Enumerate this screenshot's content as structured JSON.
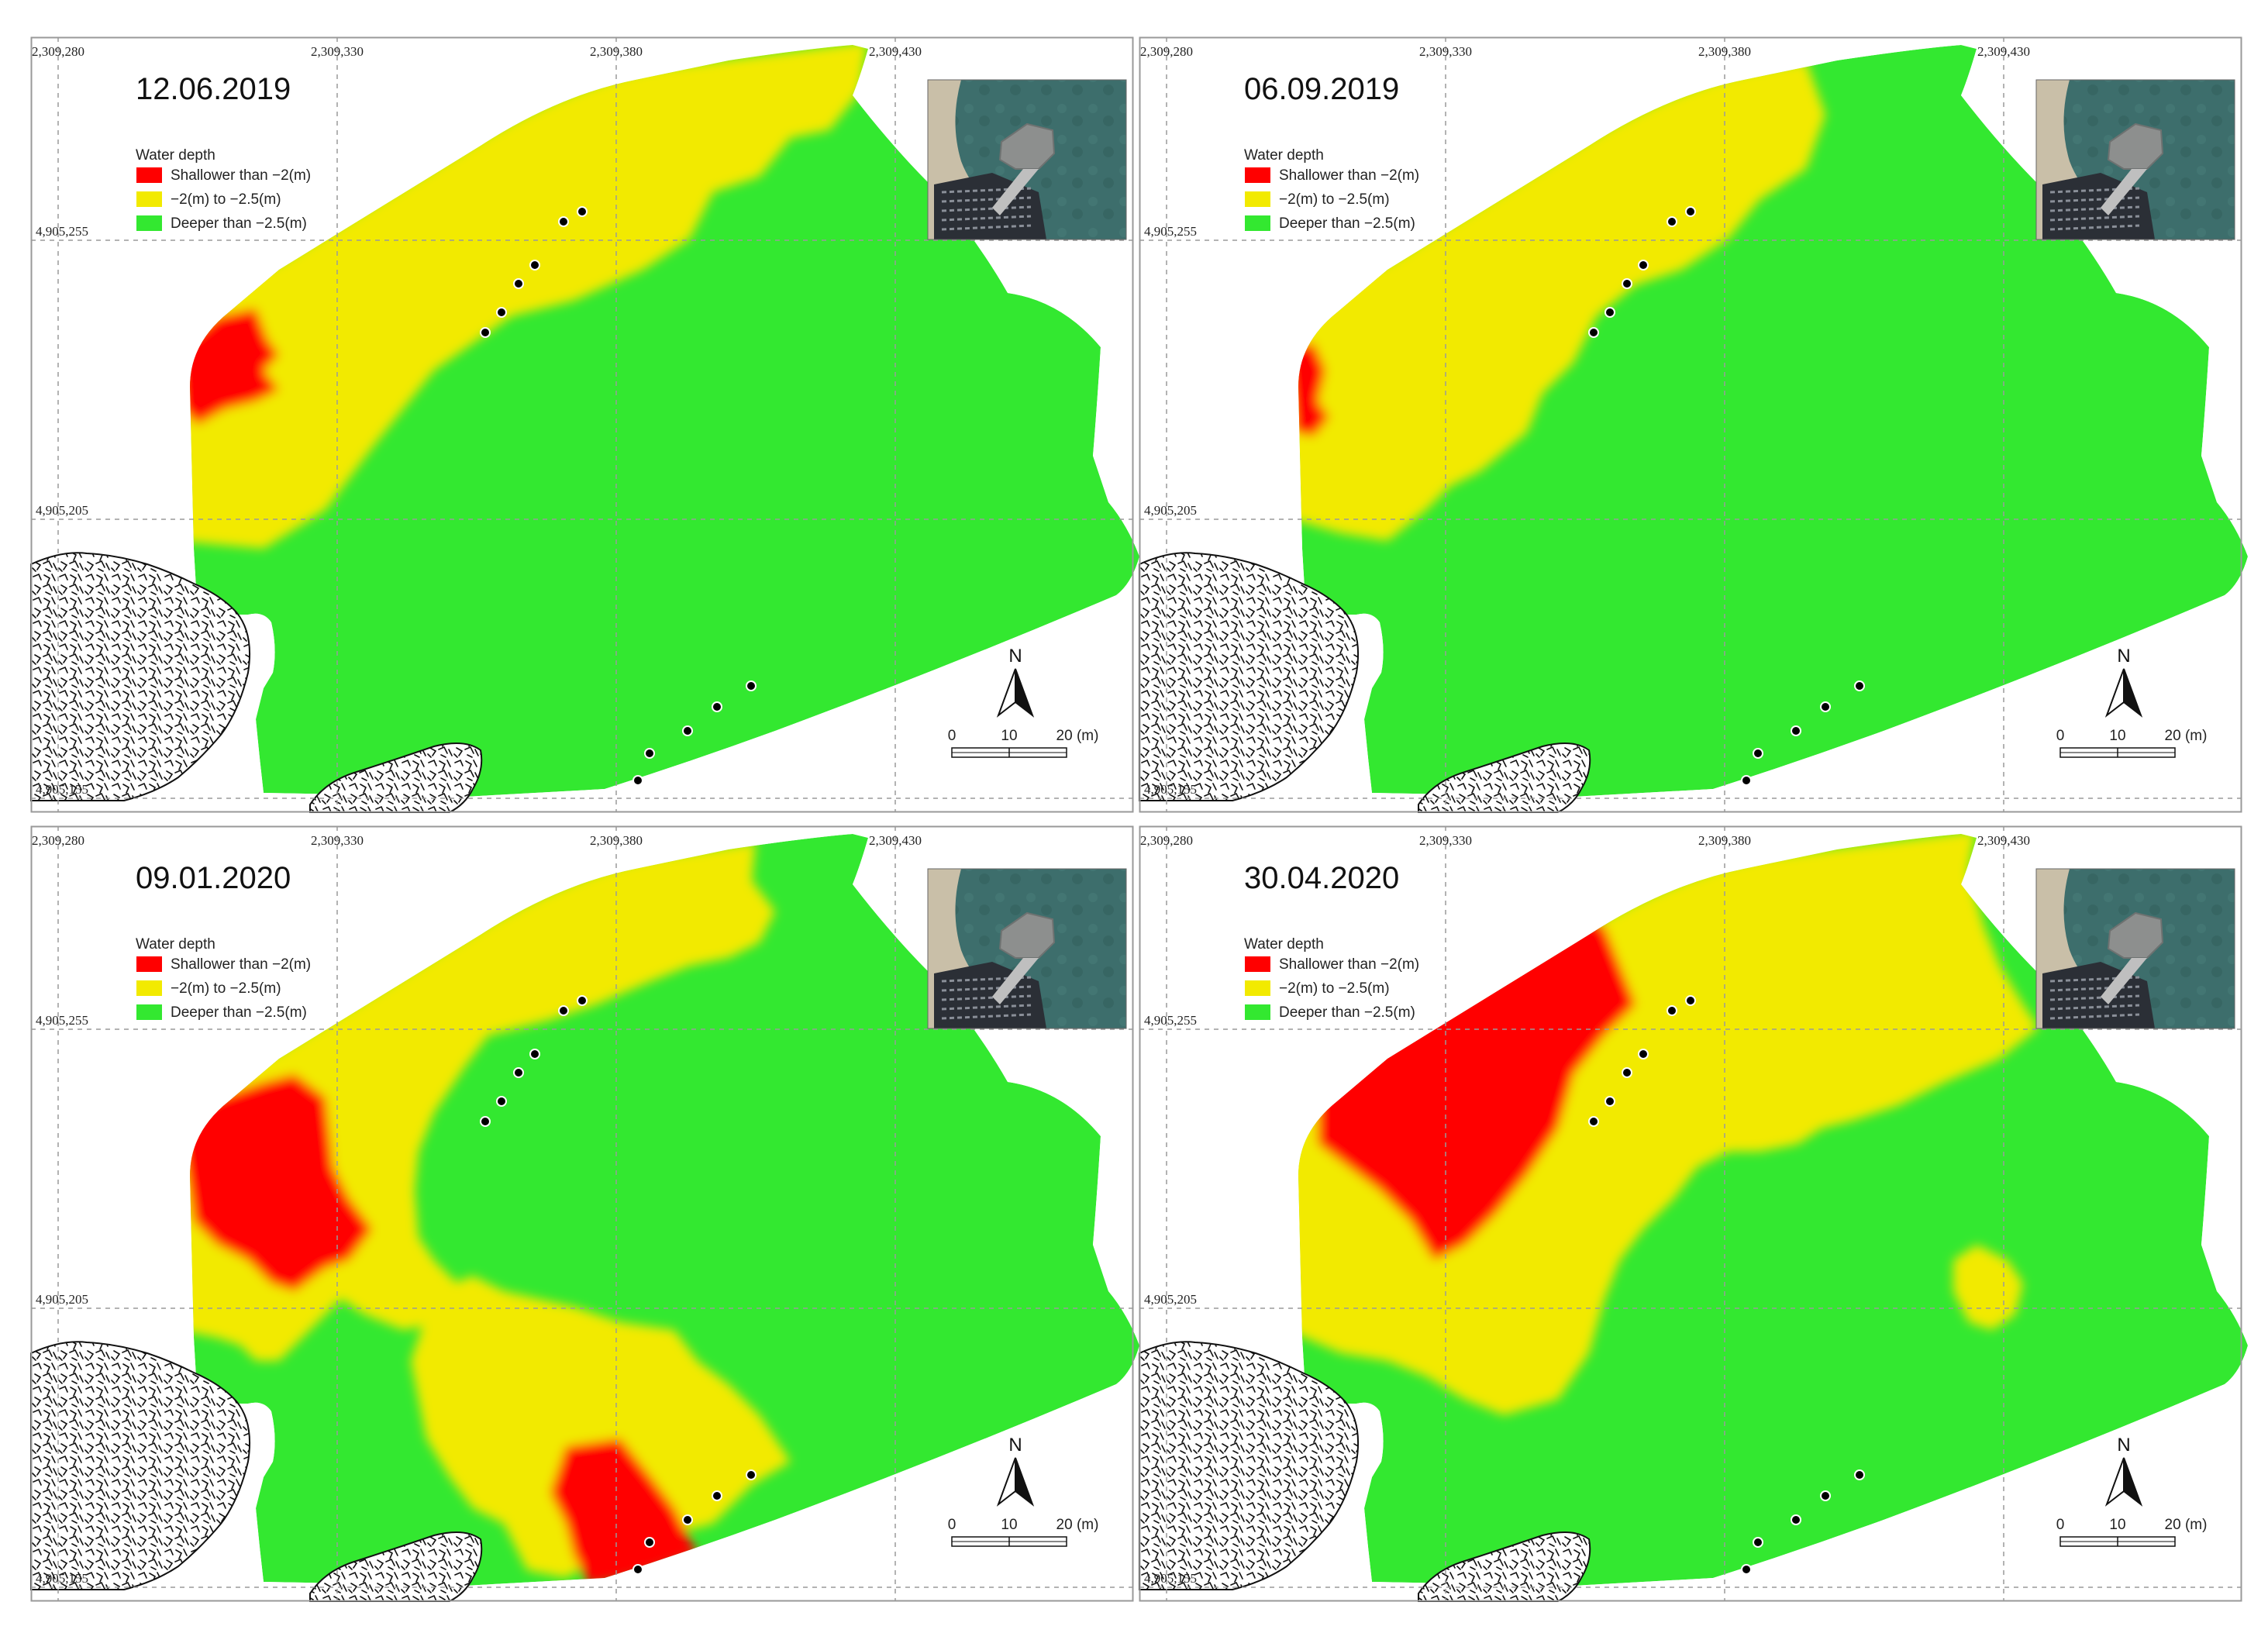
{
  "panels": [
    {
      "date": "12.06.2019",
      "legend": {
        "title": "Water depth",
        "items": [
          {
            "label": "Shallower than −2(m)",
            "color": "#ff0000"
          },
          {
            "label": "−2(m) to −2.5(m)",
            "color": "#f2ea00"
          },
          {
            "label": "Deeper than −2.5(m)",
            "color": "#33e830"
          }
        ]
      },
      "x_ticks": [
        "2,309,280",
        "2,309,330",
        "2,309,380",
        "2,309,430"
      ],
      "y_ticks": [
        "4,905,255",
        "4,905,205",
        "4,905,155"
      ],
      "north_label": "N",
      "scale_labels": [
        "0",
        "10",
        "20 (m)"
      ]
    },
    {
      "date": "06.09.2019",
      "legend": {
        "title": "Water depth",
        "items": [
          {
            "label": "Shallower than −2(m)",
            "color": "#ff0000"
          },
          {
            "label": "−2(m) to −2.5(m)",
            "color": "#f2ea00"
          },
          {
            "label": "Deeper than −2.5(m)",
            "color": "#33e830"
          }
        ]
      },
      "x_ticks": [
        "2,309,280",
        "2,309,330",
        "2,309,380",
        "2,309,430"
      ],
      "y_ticks": [
        "4,905,255",
        "4,905,205",
        "4,905,155"
      ],
      "north_label": "N",
      "scale_labels": [
        "0",
        "10",
        "20 (m)"
      ]
    },
    {
      "date": "09.01.2020",
      "legend": {
        "title": "Water depth",
        "items": [
          {
            "label": "Shallower than −2(m)",
            "color": "#ff0000"
          },
          {
            "label": "−2(m) to −2.5(m)",
            "color": "#f2ea00"
          },
          {
            "label": "Deeper than −2.5(m)",
            "color": "#33e830"
          }
        ]
      },
      "x_ticks": [
        "2,309,280",
        "2,309,330",
        "2,309,380",
        "2,309,430"
      ],
      "y_ticks": [
        "4,905,255",
        "4,905,205",
        "4,905,155"
      ],
      "north_label": "N",
      "scale_labels": [
        "0",
        "10",
        "20 (m)"
      ]
    },
    {
      "date": "30.04.2020",
      "legend": {
        "title": "Water depth",
        "items": [
          {
            "label": "Shallower than −2(m)",
            "color": "#ff0000"
          },
          {
            "label": "−2(m) to −2.5(m)",
            "color": "#f2ea00"
          },
          {
            "label": "Deeper than −2.5(m)",
            "color": "#33e830"
          }
        ]
      },
      "x_ticks": [
        "2,309,280",
        "2,309,330",
        "2,309,380",
        "2,309,430"
      ],
      "y_ticks": [
        "4,905,255",
        "4,905,205",
        "4,905,155"
      ],
      "north_label": "N",
      "scale_labels": [
        "0",
        "10",
        "20 (m)"
      ]
    }
  ]
}
